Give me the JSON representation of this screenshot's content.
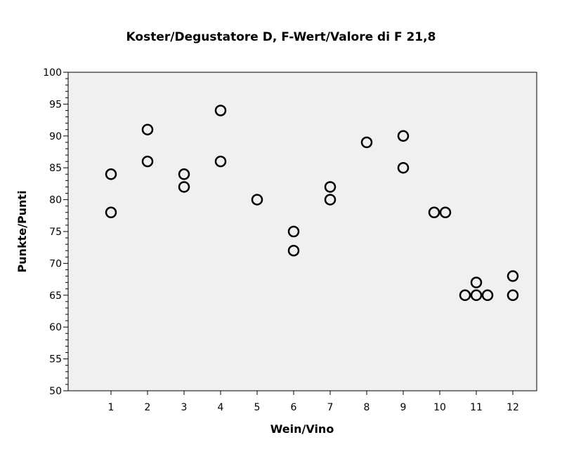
{
  "chart_data": {
    "type": "scatter",
    "title": "Koster/Degustatore D, F-Wert/Valore di F 21,8",
    "xlabel": "Wein/Vino",
    "ylabel": "Punkte/Punti",
    "ylim": [
      50,
      100
    ],
    "xlim": [
      0,
      13
    ],
    "yticks": [
      50,
      55,
      60,
      65,
      70,
      75,
      80,
      85,
      90,
      95,
      100
    ],
    "xticks": [
      1,
      2,
      3,
      4,
      5,
      6,
      7,
      8,
      9,
      10,
      11,
      12
    ],
    "grid": false,
    "plot_background": "#f0f0f0",
    "marker": "open-circle",
    "points": [
      {
        "x": 1,
        "y": 84
      },
      {
        "x": 1,
        "y": 78
      },
      {
        "x": 2,
        "y": 91
      },
      {
        "x": 2,
        "y": 86
      },
      {
        "x": 3,
        "y": 84
      },
      {
        "x": 3,
        "y": 82
      },
      {
        "x": 4,
        "y": 94
      },
      {
        "x": 4,
        "y": 86
      },
      {
        "x": 5,
        "y": 80
      },
      {
        "x": 6,
        "y": 75
      },
      {
        "x": 6,
        "y": 72
      },
      {
        "x": 7,
        "y": 82
      },
      {
        "x": 7,
        "y": 80
      },
      {
        "x": 8,
        "y": 89
      },
      {
        "x": 9,
        "y": 90
      },
      {
        "x": 9,
        "y": 85
      },
      {
        "x": 10,
        "y": 78
      },
      {
        "x": 10,
        "y": 78
      },
      {
        "x": 11,
        "y": 67
      },
      {
        "x": 11,
        "y": 65
      },
      {
        "x": 11,
        "y": 65
      },
      {
        "x": 11,
        "y": 65
      },
      {
        "x": 12,
        "y": 68
      },
      {
        "x": 12,
        "y": 65
      }
    ]
  }
}
